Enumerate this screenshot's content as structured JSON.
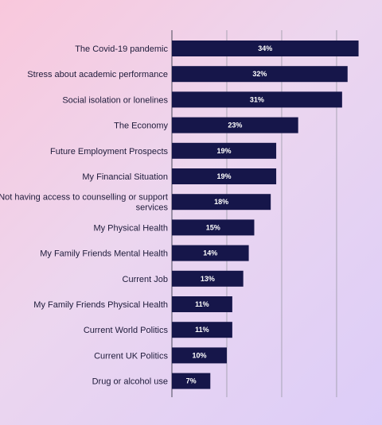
{
  "chart_data": {
    "type": "bar",
    "orientation": "horizontal",
    "categories": [
      "The Covid-19 pandemic",
      "Stress about academic performance",
      "Social isolation or lonelines",
      "The Economy",
      "Future Employment Prospects",
      "My Financial Situation",
      "Not having access to counselling or support services",
      "My Physical Health",
      "My Family Friends Mental Health",
      "Current Job",
      "My Family Friends Physical Health",
      "Current World Politics",
      "Current UK Politics",
      "Drug or alcohol use"
    ],
    "category_label_lines": [
      [
        "The Covid-19 pandemic"
      ],
      [
        "Stress about academic performance"
      ],
      [
        "Social isolation or lonelines"
      ],
      [
        "The Economy"
      ],
      [
        "Future Employment Prospects"
      ],
      [
        "My Financial Situation"
      ],
      [
        "Not having access to counselling or support",
        "services"
      ],
      [
        "My Physical Health"
      ],
      [
        "My Family Friends Mental Health"
      ],
      [
        "Current Job"
      ],
      [
        "My Family Friends Physical Health"
      ],
      [
        "Current World Politics"
      ],
      [
        "Current UK Politics"
      ],
      [
        "Drug or alcohol use"
      ]
    ],
    "values": [
      34,
      32,
      31,
      23,
      19,
      19,
      18,
      15,
      14,
      13,
      11,
      11,
      10,
      7
    ],
    "value_labels": [
      "34%",
      "32%",
      "31%",
      "23%",
      "19%",
      "19%",
      "18%",
      "15%",
      "14%",
      "13%",
      "11%",
      "11%",
      "10%",
      "7%"
    ],
    "xlim": [
      0,
      34.5
    ],
    "grid_values": [
      10,
      20,
      30
    ],
    "grid": true,
    "title": "",
    "xlabel": "",
    "ylabel": ""
  },
  "colors": {
    "bar": "#16164a",
    "gridline": "#9a9aa6",
    "axis": "#4a4a5a",
    "label": "#1e1b3a",
    "value_label": "#ffffff"
  }
}
